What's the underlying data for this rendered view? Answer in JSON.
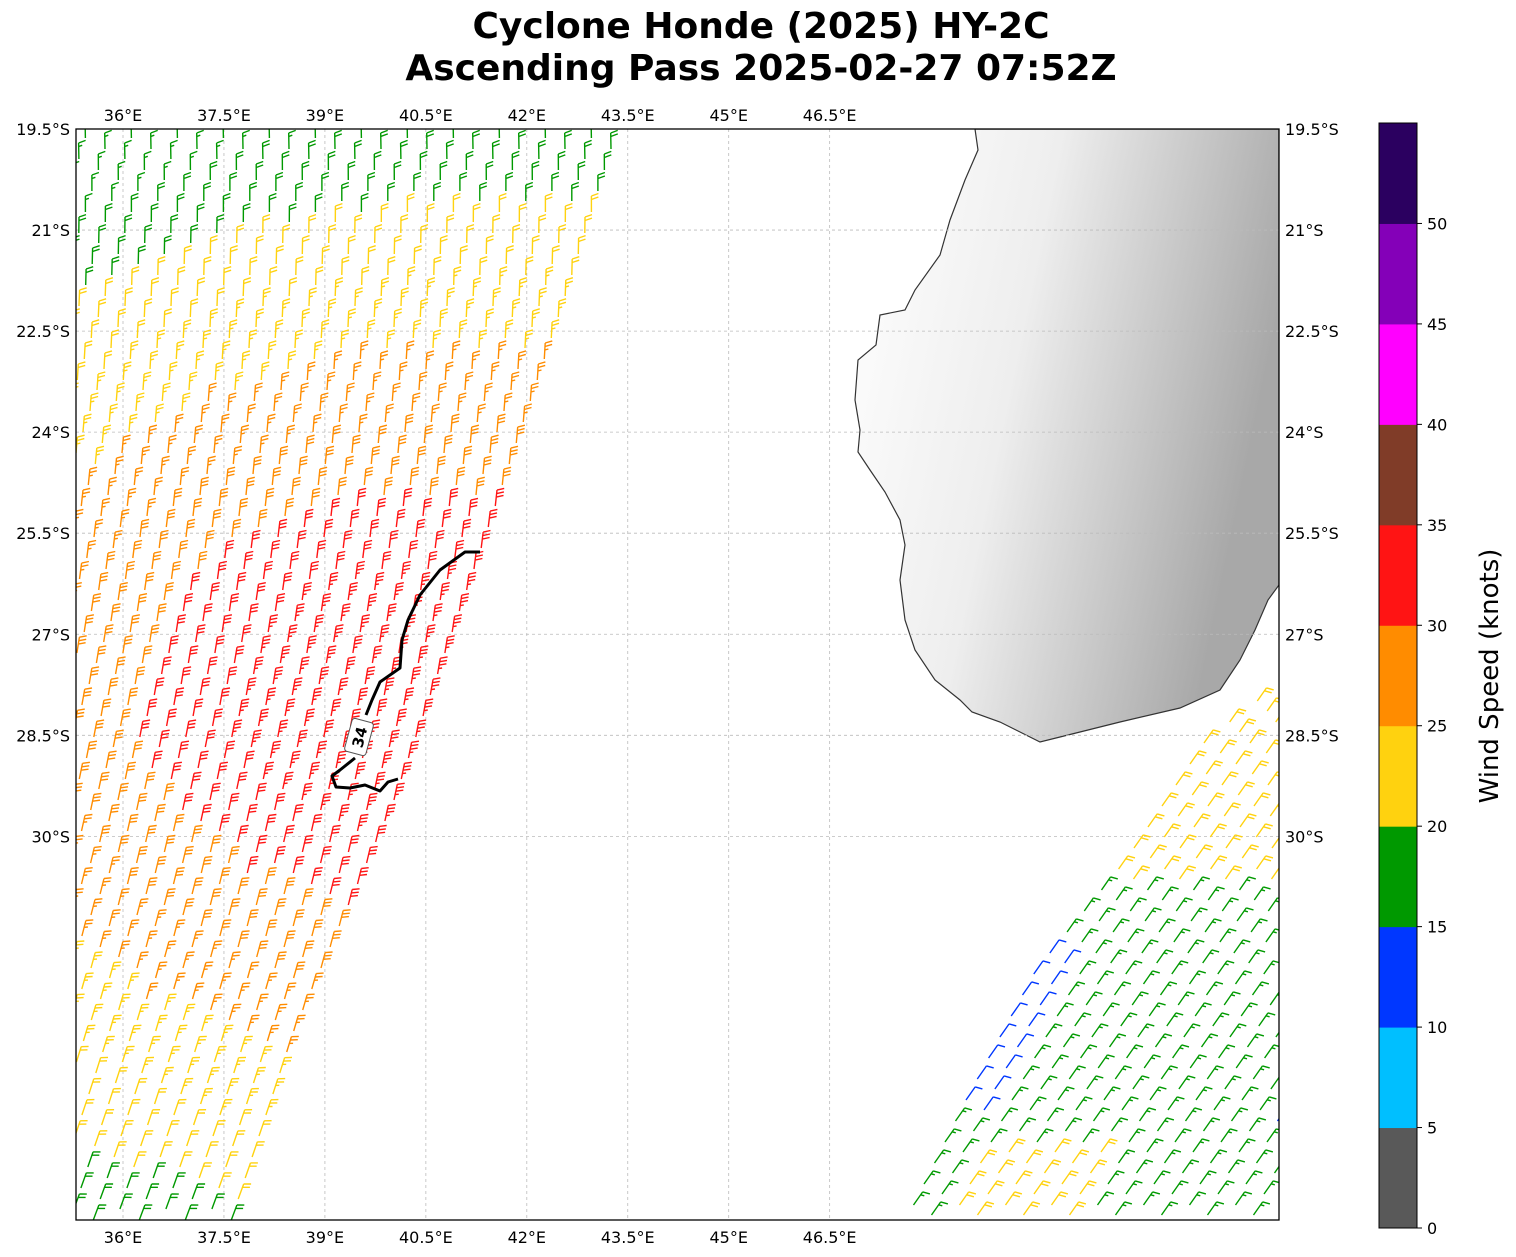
{
  "title": {
    "line1": "Cyclone Honde (2025) HY-2C",
    "line2": "Ascending Pass 2025-02-27 07:52Z"
  },
  "map": {
    "lon_ticks": [
      "36°E",
      "37.5°E",
      "39°E",
      "40.5°E",
      "42°E",
      "43.5°E",
      "45°E",
      "46.5°E"
    ],
    "lat_ticks": [
      "19.5°S",
      "21°S",
      "22.5°S",
      "24°S",
      "25.5°S",
      "27°S",
      "28.5°S",
      "30°S"
    ],
    "contour_label": "34",
    "land_color_light": "#ffffff",
    "land_color_dark": "#9a9a9a",
    "coastline_color": "#333333",
    "grid": true
  },
  "colorbar": {
    "label": "Wind Speed (knots)",
    "ticks": [
      "0",
      "5",
      "10",
      "15",
      "20",
      "25",
      "30",
      "35",
      "40",
      "45",
      "50"
    ],
    "colors": [
      "#595959",
      "#00bfff",
      "#0037ff",
      "#009900",
      "#ffd20f",
      "#ff8c00",
      "#ff1414",
      "#803c28",
      "#ff00ff",
      "#8400b8",
      "#2b0060"
    ]
  }
}
